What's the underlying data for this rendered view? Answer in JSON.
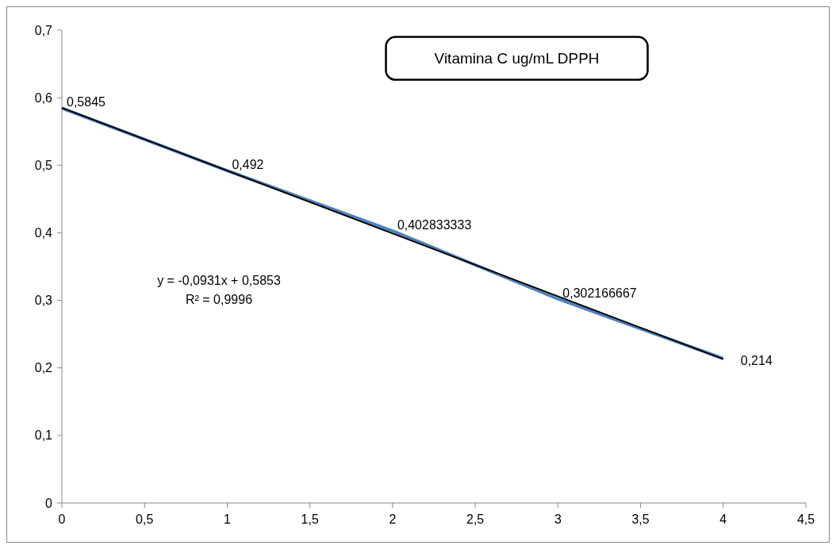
{
  "chart_data": {
    "type": "line",
    "title": "Vitamina C  ug/mL DPPH",
    "xlim": [
      0,
      4.5
    ],
    "xticks": [
      0,
      {
        "value": 0.5,
        "label": "0,5"
      },
      1,
      {
        "value": 1.5,
        "label": "1,5"
      },
      2,
      {
        "value": 2.5,
        "label": "2,5"
      },
      3,
      {
        "value": 3.5,
        "label": "3,5"
      },
      4,
      {
        "value": 4.5,
        "label": "4,5"
      }
    ],
    "ylim": [
      0,
      0.7
    ],
    "yticks": [
      0,
      {
        "value": 0.1,
        "label": "0,1"
      },
      {
        "value": 0.2,
        "label": "0,2"
      },
      {
        "value": 0.3,
        "label": "0,3"
      },
      {
        "value": 0.4,
        "label": "0,4"
      },
      {
        "value": 0.5,
        "label": "0,5"
      },
      {
        "value": 0.6,
        "label": "0,6"
      },
      {
        "value": 0.7,
        "label": "0,7"
      }
    ],
    "grid": false,
    "marker": "none",
    "series": [
      {
        "color": "#4f81bd",
        "x": [
          0,
          1,
          2,
          3,
          4
        ],
        "values": [
          0.5845,
          0.492,
          0.402833333,
          0.302166667,
          0.214
        ],
        "value_labels": [
          "0,5845",
          "0,492",
          "0,402833333",
          "0,302166667",
          "0,214"
        ]
      },
      {
        "color": "#000000",
        "x": [
          0,
          4
        ],
        "values": [
          0.585,
          0.213
        ]
      }
    ],
    "annotations": [
      "y = -0,0931x + 0,5853",
      "R² = 0,9996"
    ]
  }
}
